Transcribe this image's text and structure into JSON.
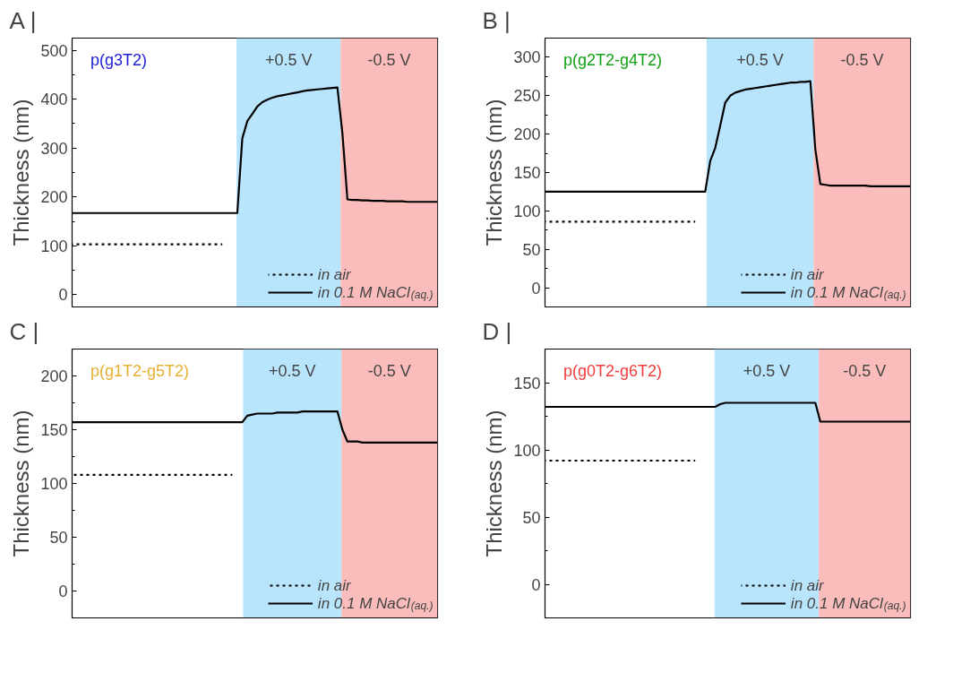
{
  "chart_data": [
    {
      "type": "line",
      "title": "A |",
      "subtitle": "p(g3T2)",
      "ylabel": "Thickness (nm)",
      "legend": "bottom right",
      "grid": false,
      "categories": [
        null,
        null,
        null,
        null,
        null,
        null,
        null,
        null,
        null,
        null,
        null,
        null,
        null,
        null,
        null,
        null,
        null,
        null,
        null,
        null,
        null,
        null,
        null,
        null,
        null,
        null,
        null,
        null,
        null,
        null,
        null,
        null,
        null,
        null,
        null,
        null,
        null,
        null,
        null,
        null,
        null,
        null,
        null,
        null,
        null,
        null,
        null,
        null,
        null,
        null,
        null,
        null,
        null,
        null,
        null,
        null,
        null,
        null,
        null,
        null,
        null,
        null,
        null,
        null,
        null,
        null,
        null,
        null,
        null,
        null,
        null,
        null,
        null,
        null
      ],
      "ylim": [
        -25,
        525
      ],
      "yticks": [
        0,
        {
          "value": 50,
          "label": null
        },
        100,
        {
          "value": 150,
          "label": null
        },
        200,
        {
          "value": 250,
          "label": null
        },
        300,
        {
          "value": 350,
          "label": null
        },
        400,
        {
          "value": 450,
          "label": null
        },
        500
      ],
      "annotations": [
        "+0.5 V",
        "-0.5 V"
      ],
      "series": [
        {
          "name": "in air",
          "color": "#000000",
          "line_style": "dotted",
          "values": [
            103,
            103,
            103,
            103,
            103,
            103,
            103,
            103,
            103,
            103,
            103,
            103,
            103,
            103,
            103,
            103,
            103,
            103,
            103,
            103,
            103,
            103,
            103,
            103,
            103,
            103,
            103,
            103,
            103,
            103,
            103,
            null,
            null,
            null,
            null,
            null,
            null,
            null,
            null,
            null,
            null,
            null,
            null,
            null,
            null,
            null,
            null,
            null,
            null,
            null,
            null,
            null,
            null,
            null,
            null,
            null,
            null,
            null,
            null,
            null,
            null,
            null,
            null,
            null,
            null,
            null,
            null,
            null,
            null,
            null,
            null,
            null,
            null,
            null
          ]
        },
        {
          "name": "in 0.1 M NaCl$_{(aq.)}$",
          "color": "#000000",
          "line_style": "solid",
          "values": [
            167,
            167,
            167,
            167,
            167,
            167,
            167,
            167,
            167,
            167,
            167,
            167,
            167,
            167,
            167,
            167,
            167,
            167,
            167,
            167,
            167,
            167,
            167,
            167,
            167,
            167,
            167,
            167,
            167,
            167,
            167,
            167,
            167,
            167,
            320,
            355,
            370,
            385,
            394,
            399,
            403,
            406,
            408,
            410,
            412,
            414,
            416,
            418,
            419,
            420,
            421,
            422,
            423,
            424,
            330,
            195,
            194,
            194,
            193,
            193,
            192,
            192,
            192,
            191,
            191,
            191,
            191,
            190,
            190,
            190,
            190,
            190,
            190,
            190
          ]
        }
      ]
    },
    {
      "type": "line",
      "title": "B |",
      "subtitle": "p(g2T2-g4T2)",
      "ylabel": "Thickness (nm)",
      "legend": "bottom right",
      "grid": false,
      "categories": [
        null,
        null,
        null,
        null,
        null,
        null,
        null,
        null,
        null,
        null,
        null,
        null,
        null,
        null,
        null,
        null,
        null,
        null,
        null,
        null,
        null,
        null,
        null,
        null,
        null,
        null,
        null,
        null,
        null,
        null,
        null,
        null,
        null,
        null,
        null,
        null,
        null,
        null,
        null,
        null,
        null,
        null,
        null,
        null,
        null,
        null,
        null,
        null,
        null,
        null,
        null,
        null,
        null,
        null,
        null,
        null,
        null,
        null,
        null,
        null,
        null,
        null,
        null,
        null,
        null,
        null,
        null,
        null,
        null,
        null,
        null,
        null,
        null,
        null
      ],
      "ylim": [
        -25,
        325
      ],
      "yticks": [
        0,
        {
          "value": 25,
          "label": null
        },
        50,
        {
          "value": 75,
          "label": null
        },
        100,
        {
          "value": 125,
          "label": null
        },
        150,
        {
          "value": 175,
          "label": null
        },
        200,
        {
          "value": 225,
          "label": null
        },
        250,
        {
          "value": 275,
          "label": null
        },
        300
      ],
      "annotations": [
        "+0.5 V",
        "-0.5 V"
      ],
      "series": [
        {
          "name": "in air",
          "color": "#000000",
          "line_style": "dotted",
          "values": [
            86,
            86,
            86,
            86,
            86,
            86,
            86,
            86,
            86,
            86,
            86,
            86,
            86,
            86,
            86,
            86,
            86,
            86,
            86,
            86,
            86,
            86,
            86,
            86,
            86,
            86,
            86,
            86,
            86,
            86,
            86,
            null,
            null,
            null,
            null,
            null,
            null,
            null,
            null,
            null,
            null,
            null,
            null,
            null,
            null,
            null,
            null,
            null,
            null,
            null,
            null,
            null,
            null,
            null,
            null,
            null,
            null,
            null,
            null,
            null,
            null,
            null,
            null,
            null,
            null,
            null,
            null,
            null,
            null,
            null,
            null,
            null,
            null,
            null
          ]
        },
        {
          "name": "in 0.1 M NaCl$_{(aq.)}$",
          "color": "#000000",
          "line_style": "solid",
          "values": [
            125,
            125,
            125,
            125,
            125,
            125,
            125,
            125,
            125,
            125,
            125,
            125,
            125,
            125,
            125,
            125,
            125,
            125,
            125,
            125,
            125,
            125,
            125,
            125,
            125,
            125,
            125,
            125,
            125,
            125,
            125,
            125,
            125,
            165,
            182,
            211,
            241,
            250,
            254,
            256,
            258,
            259,
            260,
            261,
            262,
            263,
            264,
            265,
            266,
            267,
            267,
            268,
            268,
            269,
            180,
            135,
            134,
            133,
            133,
            133,
            133,
            133,
            133,
            133,
            133,
            132,
            132,
            132,
            132,
            132,
            132,
            132,
            132,
            132
          ]
        }
      ]
    },
    {
      "type": "line",
      "title": "C |",
      "subtitle": "p(g1T2-g5T2)",
      "ylabel": "Thickness (nm)",
      "legend": "bottom right",
      "grid": false,
      "categories": [
        null,
        null,
        null,
        null,
        null,
        null,
        null,
        null,
        null,
        null,
        null,
        null,
        null,
        null,
        null,
        null,
        null,
        null,
        null,
        null,
        null,
        null,
        null,
        null,
        null,
        null,
        null,
        null,
        null,
        null,
        null,
        null,
        null,
        null,
        null,
        null,
        null,
        null,
        null,
        null,
        null,
        null,
        null,
        null,
        null,
        null,
        null,
        null,
        null,
        null,
        null,
        null,
        null,
        null,
        null,
        null,
        null,
        null,
        null,
        null,
        null,
        null,
        null,
        null,
        null,
        null,
        null,
        null,
        null,
        null,
        null,
        null,
        null,
        null
      ],
      "ylim": [
        -25,
        225
      ],
      "yticks": [
        0,
        {
          "value": 25,
          "label": null
        },
        50,
        {
          "value": 75,
          "label": null
        },
        100,
        {
          "value": 125,
          "label": null
        },
        150,
        {
          "value": 175,
          "label": null
        },
        200
      ],
      "annotations": [
        "+0.5 V",
        "-0.5 V"
      ],
      "series": [
        {
          "name": "in air",
          "color": "#000000",
          "line_style": "dotted",
          "values": [
            108,
            108,
            108,
            108,
            108,
            108,
            108,
            108,
            108,
            108,
            108,
            108,
            108,
            108,
            108,
            108,
            108,
            108,
            108,
            108,
            108,
            108,
            108,
            108,
            108,
            108,
            108,
            108,
            108,
            108,
            108,
            108,
            108,
            null,
            null,
            null,
            null,
            null,
            null,
            null,
            null,
            null,
            null,
            null,
            null,
            null,
            null,
            null,
            null,
            null,
            null,
            null,
            null,
            null,
            null,
            null,
            null,
            null,
            null,
            null,
            null,
            null,
            null,
            null,
            null,
            null,
            null,
            null,
            null,
            null,
            null,
            null,
            null,
            null
          ]
        },
        {
          "name": "in 0.1 M NaCl$_{(aq.)}$",
          "color": "#000000",
          "line_style": "solid",
          "values": [
            157,
            157,
            157,
            157,
            157,
            157,
            157,
            157,
            157,
            157,
            157,
            157,
            157,
            157,
            157,
            157,
            157,
            157,
            157,
            157,
            157,
            157,
            157,
            157,
            157,
            157,
            157,
            157,
            157,
            157,
            157,
            157,
            157,
            157,
            157,
            163,
            164,
            165,
            165,
            165,
            165,
            166,
            166,
            166,
            166,
            166,
            167,
            167,
            167,
            167,
            167,
            167,
            167,
            167,
            150,
            139,
            139,
            139,
            138,
            138,
            138,
            138,
            138,
            138,
            138,
            138,
            138,
            138,
            138,
            138,
            138,
            138,
            138,
            138
          ]
        }
      ]
    },
    {
      "type": "line",
      "title": "D |",
      "subtitle": "p(g0T2-g6T2)",
      "ylabel": "Thickness (nm)",
      "legend": "bottom right",
      "grid": false,
      "categories": [
        null,
        null,
        null,
        null,
        null,
        null,
        null,
        null,
        null,
        null,
        null,
        null,
        null,
        null,
        null,
        null,
        null,
        null,
        null,
        null,
        null,
        null,
        null,
        null,
        null,
        null,
        null,
        null,
        null,
        null,
        null,
        null,
        null,
        null,
        null,
        null,
        null,
        null,
        null,
        null,
        null,
        null,
        null,
        null,
        null,
        null,
        null,
        null,
        null,
        null,
        null,
        null,
        null,
        null,
        null,
        null,
        null,
        null,
        null,
        null,
        null,
        null,
        null,
        null,
        null,
        null,
        null,
        null,
        null,
        null,
        null,
        null,
        null,
        null
      ],
      "ylim": [
        -25,
        175
      ],
      "yticks": [
        0,
        {
          "value": 25,
          "label": null
        },
        50,
        {
          "value": 75,
          "label": null
        },
        100,
        {
          "value": 125,
          "label": null
        },
        150
      ],
      "annotations": [
        "+0.5 V",
        "-0.5 V"
      ],
      "series": [
        {
          "name": "in air",
          "color": "#000000",
          "line_style": "dotted",
          "values": [
            92,
            92,
            92,
            92,
            92,
            92,
            92,
            92,
            92,
            92,
            92,
            92,
            92,
            92,
            92,
            92,
            92,
            92,
            92,
            92,
            92,
            92,
            92,
            92,
            92,
            92,
            92,
            92,
            92,
            92,
            92,
            null,
            null,
            null,
            null,
            null,
            null,
            null,
            null,
            null,
            null,
            null,
            null,
            null,
            null,
            null,
            null,
            null,
            null,
            null,
            null,
            null,
            null,
            null,
            null,
            null,
            null,
            null,
            null,
            null,
            null,
            null,
            null,
            null,
            null,
            null,
            null,
            null,
            null,
            null,
            null,
            null,
            null,
            null
          ]
        },
        {
          "name": "in 0.1 M NaCl$_{(aq.)}$",
          "color": "#000000",
          "line_style": "solid",
          "values": [
            132,
            132,
            132,
            132,
            132,
            132,
            132,
            132,
            132,
            132,
            132,
            132,
            132,
            132,
            132,
            132,
            132,
            132,
            132,
            132,
            132,
            132,
            132,
            132,
            132,
            132,
            132,
            132,
            132,
            132,
            132,
            132,
            132,
            132,
            132,
            134,
            135,
            135,
            135,
            135,
            135,
            135,
            135,
            135,
            135,
            135,
            135,
            135,
            135,
            135,
            135,
            135,
            135,
            135,
            135,
            121,
            121,
            121,
            121,
            121,
            121,
            121,
            121,
            121,
            121,
            121,
            121,
            121,
            121,
            121,
            121,
            121,
            121,
            121
          ]
        }
      ]
    }
  ]
}
